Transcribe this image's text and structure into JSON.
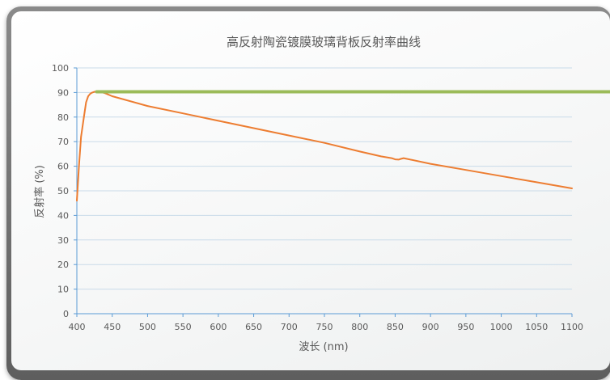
{
  "chart_data": {
    "type": "line",
    "title": "高反射陶瓷镀膜玻璃背板反射率曲线",
    "xlabel": "波长 (nm)",
    "ylabel": "反射率 (%)",
    "xlim": [
      400,
      1100
    ],
    "ylim": [
      0,
      100
    ],
    "x_ticks": [
      "400",
      "450",
      "500",
      "550",
      "600",
      "650",
      "700",
      "750",
      "800",
      "850",
      "900",
      "950",
      "1000",
      "1050",
      "1100"
    ],
    "y_ticks": [
      "0",
      "10",
      "20",
      "30",
      "40",
      "50",
      "60",
      "70",
      "80",
      "90",
      "100"
    ],
    "grid": "horizontal",
    "series": [
      {
        "color": "#ED7D31",
        "x": [
          400,
          403,
          406,
          410,
          413,
          416,
          419,
          422,
          425,
          430,
          440,
          450,
          500,
          550,
          600,
          650,
          700,
          750,
          800,
          830,
          845,
          850,
          855,
          858,
          862,
          900,
          950,
          1000,
          1050,
          1100
        ],
        "y": [
          46,
          60,
          72,
          80,
          86,
          88.5,
          89.5,
          90,
          90.3,
          90.5,
          89.7,
          88.5,
          84.5,
          81.5,
          78.5,
          75.5,
          72.5,
          69.5,
          66,
          64,
          63.3,
          62.8,
          62.7,
          63,
          63.3,
          61,
          58.5,
          56,
          53.5,
          51
        ]
      },
      {
        "color": "#9BBB59",
        "x": [
          428,
          1100
        ],
        "y": [
          90.3,
          90.3
        ]
      }
    ]
  }
}
